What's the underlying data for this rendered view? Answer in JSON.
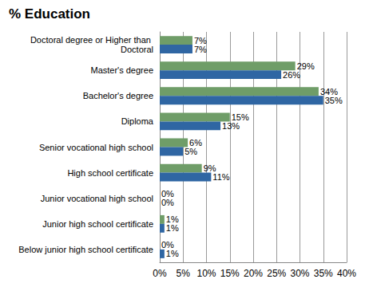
{
  "chart_data": {
    "type": "bar",
    "title": "% Education",
    "orientation": "horizontal",
    "categories": [
      "Doctoral degree or Higher than Doctoral",
      "Master's degree",
      "Bachelor's degree",
      "Diploma",
      "Senior vocational high school",
      "High school certificate",
      "Junior vocational high school",
      "Junior high school certificate",
      "Below junior high school certificate"
    ],
    "series": [
      {
        "color": "#6f9d68",
        "values": [
          7,
          29,
          34,
          15,
          6,
          9,
          0,
          1,
          0
        ],
        "value_labels": [
          "7%",
          "29%",
          "34%",
          "15%",
          "6%",
          "9%",
          "0%",
          "1%",
          "0%"
        ]
      },
      {
        "color": "#2f66a3",
        "values": [
          7,
          26,
          35,
          13,
          5,
          11,
          0,
          1,
          1
        ],
        "value_labels": [
          "7%",
          "26%",
          "35%",
          "13%",
          "5%",
          "11%",
          "0%",
          "1%",
          "1%"
        ]
      }
    ],
    "xlim": [
      0,
      40
    ],
    "xticks": [
      {
        "value": 0,
        "label": "0%"
      },
      {
        "value": 5,
        "label": "5%"
      },
      {
        "value": 10,
        "label": "10%"
      },
      {
        "value": 15,
        "label": "15%"
      },
      {
        "value": 20,
        "label": "20%"
      },
      {
        "value": 25,
        "label": "25%"
      },
      {
        "value": 30,
        "label": "30%"
      },
      {
        "value": 35,
        "label": "35%"
      },
      {
        "value": 40,
        "label": "40%"
      }
    ],
    "grid": true,
    "data_labels": true
  }
}
